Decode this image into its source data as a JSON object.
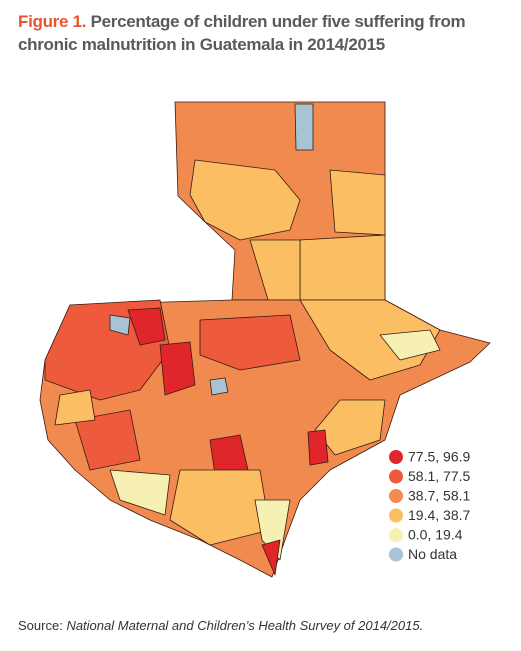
{
  "figure": {
    "label": "Figure 1.",
    "title": "Percentage of children under five suffering from chronic malnutrition in Guatemala in 2014/2015"
  },
  "legend": [
    {
      "label": "77.5, 96.9",
      "color": "#e0262b"
    },
    {
      "label": "58.1, 77.5",
      "color": "#ee5b3c"
    },
    {
      "label": "38.7, 58.1",
      "color": "#f08a4f"
    },
    {
      "label": "19.4, 38.7",
      "color": "#fbbe62"
    },
    {
      "label": "0.0, 19.4",
      "color": "#f7f0b3"
    },
    {
      "label": "No data",
      "color": "#a8c3d3"
    }
  ],
  "source": {
    "prefix": "Source:",
    "text": "National Maternal and Children’s Health Survey of 2014/2015."
  }
}
